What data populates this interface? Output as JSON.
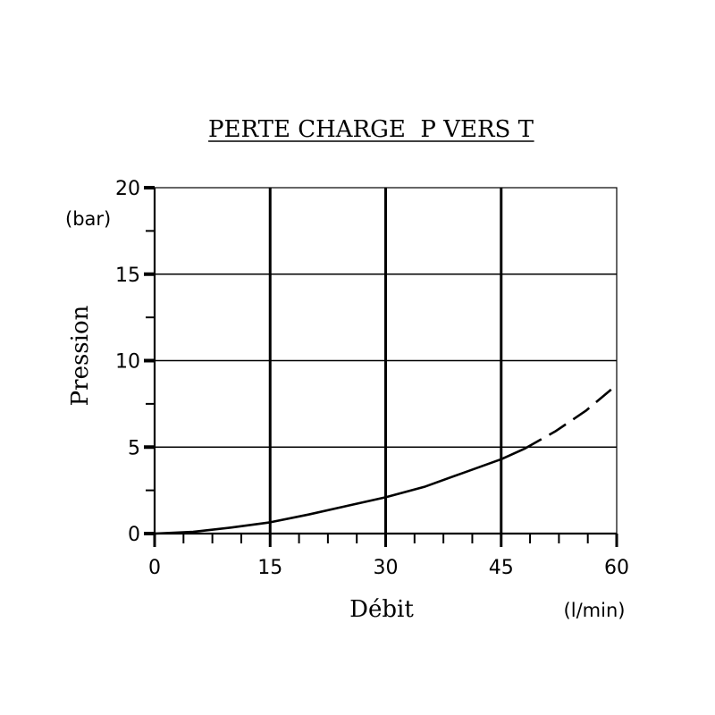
{
  "chart_data": {
    "type": "line",
    "title": "PERTE CHARGE  P VERS T",
    "xlabel": "Débit",
    "xunit": "(l/min)",
    "ylabel": "Pression",
    "yunit": "(bar)",
    "xlim": [
      0,
      60
    ],
    "ylim": [
      0,
      20
    ],
    "x_ticks": [
      0,
      15,
      30,
      45,
      60
    ],
    "x_minor_step": 3.75,
    "y_ticks": [
      0,
      5,
      10,
      15,
      20
    ],
    "y_minor_step": 2.5,
    "grid": true,
    "colors": {
      "line": "#000000",
      "grid": "#000000",
      "background": "#ffffff"
    },
    "series": [
      {
        "style": "solid",
        "x": [
          0,
          5,
          10,
          15,
          20,
          25,
          30,
          35,
          40,
          45,
          48
        ],
        "y": [
          0,
          0.1,
          0.35,
          0.65,
          1.1,
          1.6,
          2.1,
          2.7,
          3.5,
          4.3,
          4.9
        ]
      },
      {
        "style": "dashed",
        "x": [
          48,
          52,
          56,
          60
        ],
        "y": [
          4.9,
          5.9,
          7.1,
          8.6
        ]
      }
    ]
  }
}
